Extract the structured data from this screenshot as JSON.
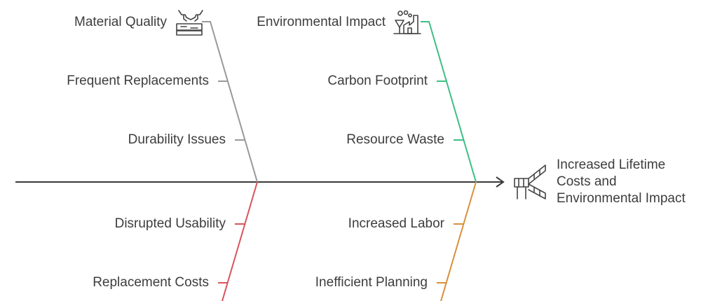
{
  "colors": {
    "spine": "#3a3a3a",
    "material": "#999999",
    "environment": "#3dbf85",
    "usability": "#d9545c",
    "labor": "#d9903a",
    "icon": "#444444"
  },
  "top_left": {
    "title": "Material Quality",
    "icon": "cow-leather-icon",
    "causes": [
      "Frequent Replacements",
      "Durability Issues"
    ]
  },
  "top_right": {
    "title": "Environmental Impact",
    "icon": "factory-pollution-icon",
    "causes": [
      "Carbon Footprint",
      "Resource Waste"
    ]
  },
  "bottom_left": {
    "causes": [
      "Disrupted Usability",
      "Replacement Costs"
    ]
  },
  "bottom_right": {
    "causes": [
      "Increased Labor",
      "Inefficient Planning"
    ]
  },
  "outcome": {
    "icon": "stairs-escalation-icon",
    "lines": [
      "Increased Lifetime",
      "Costs and",
      "Environmental Impact"
    ]
  }
}
